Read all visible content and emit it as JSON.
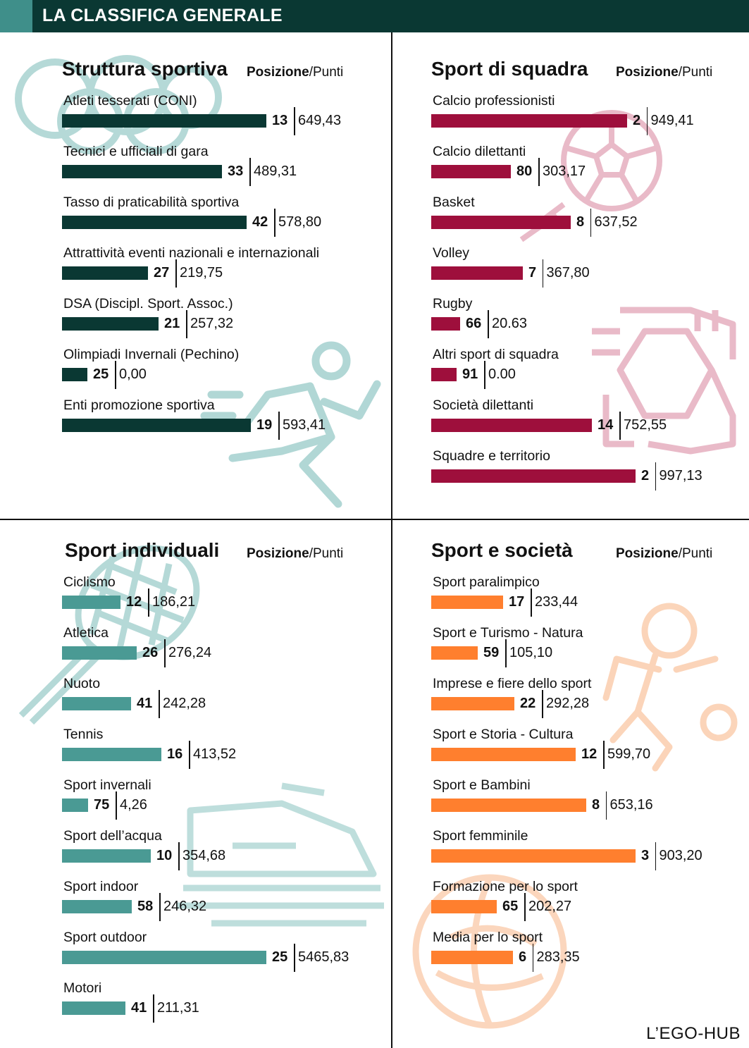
{
  "header": {
    "title": "LA CLASSIFICA GENERALE"
  },
  "source": "L’EGO-HUB",
  "chart_data": [
    {
      "type": "bar",
      "title": "Struttura sportiva",
      "legend": {
        "bold": "Posizione",
        "rest": "/Punti"
      },
      "color": "#0a3833",
      "icon": "olympic-rings-runner-icon",
      "categories": [
        "Atleti tesserati (CONI)",
        "Tecnici e ufficiali di gara",
        "Tasso di praticabilità sportiva",
        "Attrattività eventi nazionali e internazionali",
        "DSA (Discipl. Sport. Assoc.)",
        "Olimpiadi Invernali (Pechino)",
        "Enti promozione sportiva"
      ],
      "ranks": [
        13,
        33,
        42,
        27,
        21,
        25,
        19
      ],
      "scores": [
        "649,43",
        "489,31",
        "578,80",
        "219,75",
        "257,32",
        "0,00",
        "593,41"
      ]
    },
    {
      "type": "bar",
      "title": "Sport di squadra",
      "legend": {
        "bold": "Posizione",
        "rest": "/Punti"
      },
      "color": "#9e0f3c",
      "icon": "football-hands-icon",
      "categories": [
        "Calcio professionisti",
        "Calcio dilettanti",
        "Basket",
        "Volley",
        "Rugby",
        "Altri sport di squadra",
        "Società dilettanti",
        "Squadre e territorio"
      ],
      "ranks": [
        2,
        80,
        8,
        7,
        66,
        91,
        14,
        2
      ],
      "scores": [
        "949,41",
        "303,17",
        "637,52",
        "367,80",
        "20.63",
        "0.00",
        "752,55",
        "997,13"
      ]
    },
    {
      "type": "bar",
      "title": "Sport individuali",
      "legend": {
        "bold": "Posizione",
        "rest": "/Punti"
      },
      "color": "#4a9a94",
      "icon": "tennis-jetski-icon",
      "categories": [
        "Ciclismo",
        "Atletica",
        "Nuoto",
        "Tennis",
        "Sport invernali",
        "Sport dell’acqua",
        "Sport indoor",
        "Sport outdoor",
        "Motori"
      ],
      "ranks": [
        12,
        26,
        41,
        16,
        75,
        10,
        58,
        25,
        41
      ],
      "scores": [
        "186,21",
        "276,24",
        "242,28",
        "413,52",
        "4,26",
        "354,68",
        "246,32",
        "5465,83",
        "211,31"
      ]
    },
    {
      "type": "bar",
      "title": "Sport e società",
      "legend": {
        "bold": "Posizione",
        "rest": "/Punti"
      },
      "color": "#ff7f2e",
      "icon": "child-player-ball-icon",
      "categories": [
        "Sport paralimpico",
        "Sport e Turismo - Natura",
        "Imprese e fiere dello sport",
        "Sport e Storia - Cultura",
        "Sport e Bambini",
        "Sport femminile",
        "Formazione per lo sport",
        "Media per lo sport"
      ],
      "ranks": [
        17,
        59,
        22,
        12,
        8,
        3,
        65,
        6
      ],
      "scores": [
        "233,44",
        "105,10",
        "292,28",
        "599,70",
        "653,16",
        "903,20",
        "202,27",
        "283,35"
      ]
    }
  ]
}
